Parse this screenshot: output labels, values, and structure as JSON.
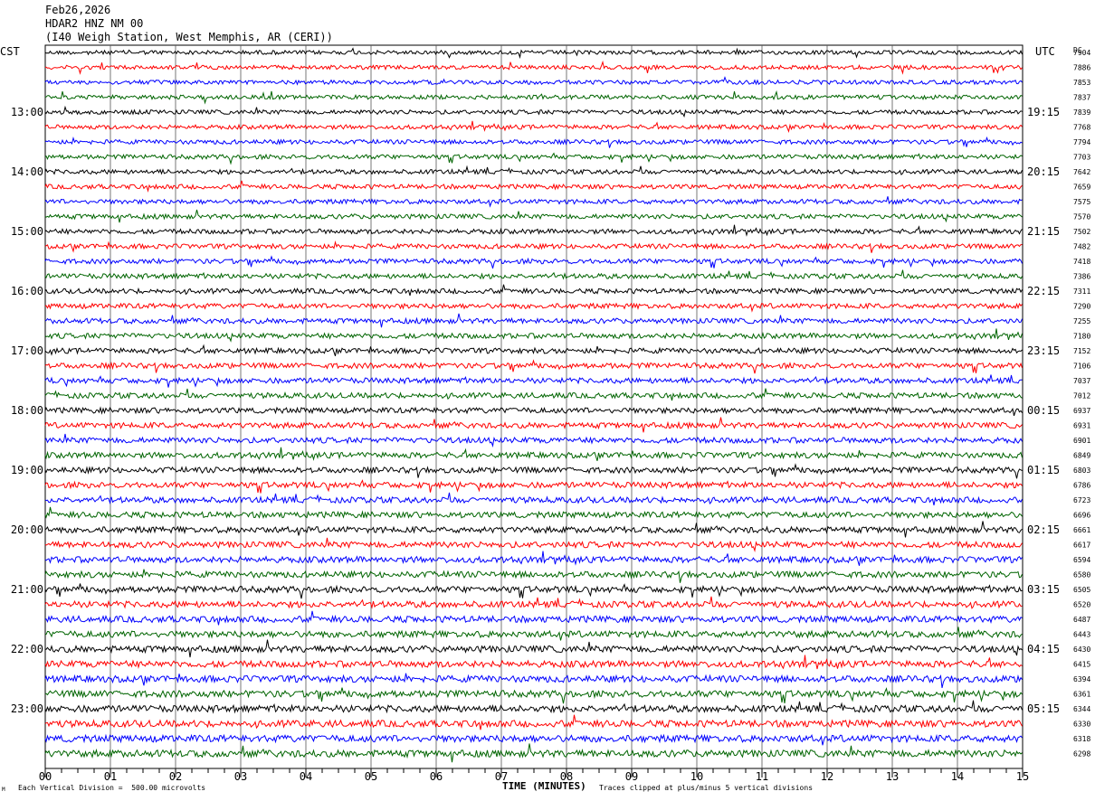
{
  "header": {
    "date": "Feb26,2026",
    "station": "HDAR2 HNZ NM 00",
    "location": "(I40 Weigh Station, West Memphis, AR (CERI))"
  },
  "left_zone_label": "CST",
  "right_zone_label": "UTC",
  "right_column_label": "DC",
  "footer": {
    "scale_note": "Each Vertical Division =  500.00 microvolts",
    "clip_note": "Traces clipped at plus/minus 5 vertical divisions",
    "corner_mark": "M"
  },
  "chart_data": {
    "type": "line",
    "xlabel": "TIME (MINUTES)",
    "xlim": [
      0,
      15
    ],
    "x_ticks": [
      "00",
      "01",
      "02",
      "03",
      "04",
      "05",
      "06",
      "07",
      "08",
      "09",
      "10",
      "11",
      "12",
      "13",
      "14",
      "15"
    ],
    "trace_colors": [
      "#000000",
      "#ff0000",
      "#0000ff",
      "#006400"
    ],
    "grid": true,
    "left_time_labels": [
      "13:00",
      "14:00",
      "15:00",
      "16:00",
      "17:00",
      "18:00",
      "19:00",
      "20:00",
      "21:00",
      "22:00",
      "23:00"
    ],
    "right_time_labels": [
      "19:15",
      "20:15",
      "21:15",
      "22:15",
      "23:15",
      "00:15",
      "01:15",
      "02:15",
      "03:15",
      "04:15",
      "05:15"
    ],
    "dc_offsets": [
      "7904",
      "7886",
      "7853",
      "7837",
      "7839",
      "7768",
      "7794",
      "7703",
      "7642",
      "7659",
      "7575",
      "7570",
      "7502",
      "7482",
      "7418",
      "7386",
      "7311",
      "7290",
      "7255",
      "7180",
      "7152",
      "7106",
      "7037",
      "7012",
      "6937",
      "6931",
      "6901",
      "6849",
      "6803",
      "6786",
      "6723",
      "6696",
      "6661",
      "6617",
      "6594",
      "6580",
      "6505",
      "6520",
      "6487",
      "6443",
      "6430",
      "6415",
      "6394",
      "6361",
      "6344",
      "6330",
      "6318",
      "6298"
    ]
  }
}
